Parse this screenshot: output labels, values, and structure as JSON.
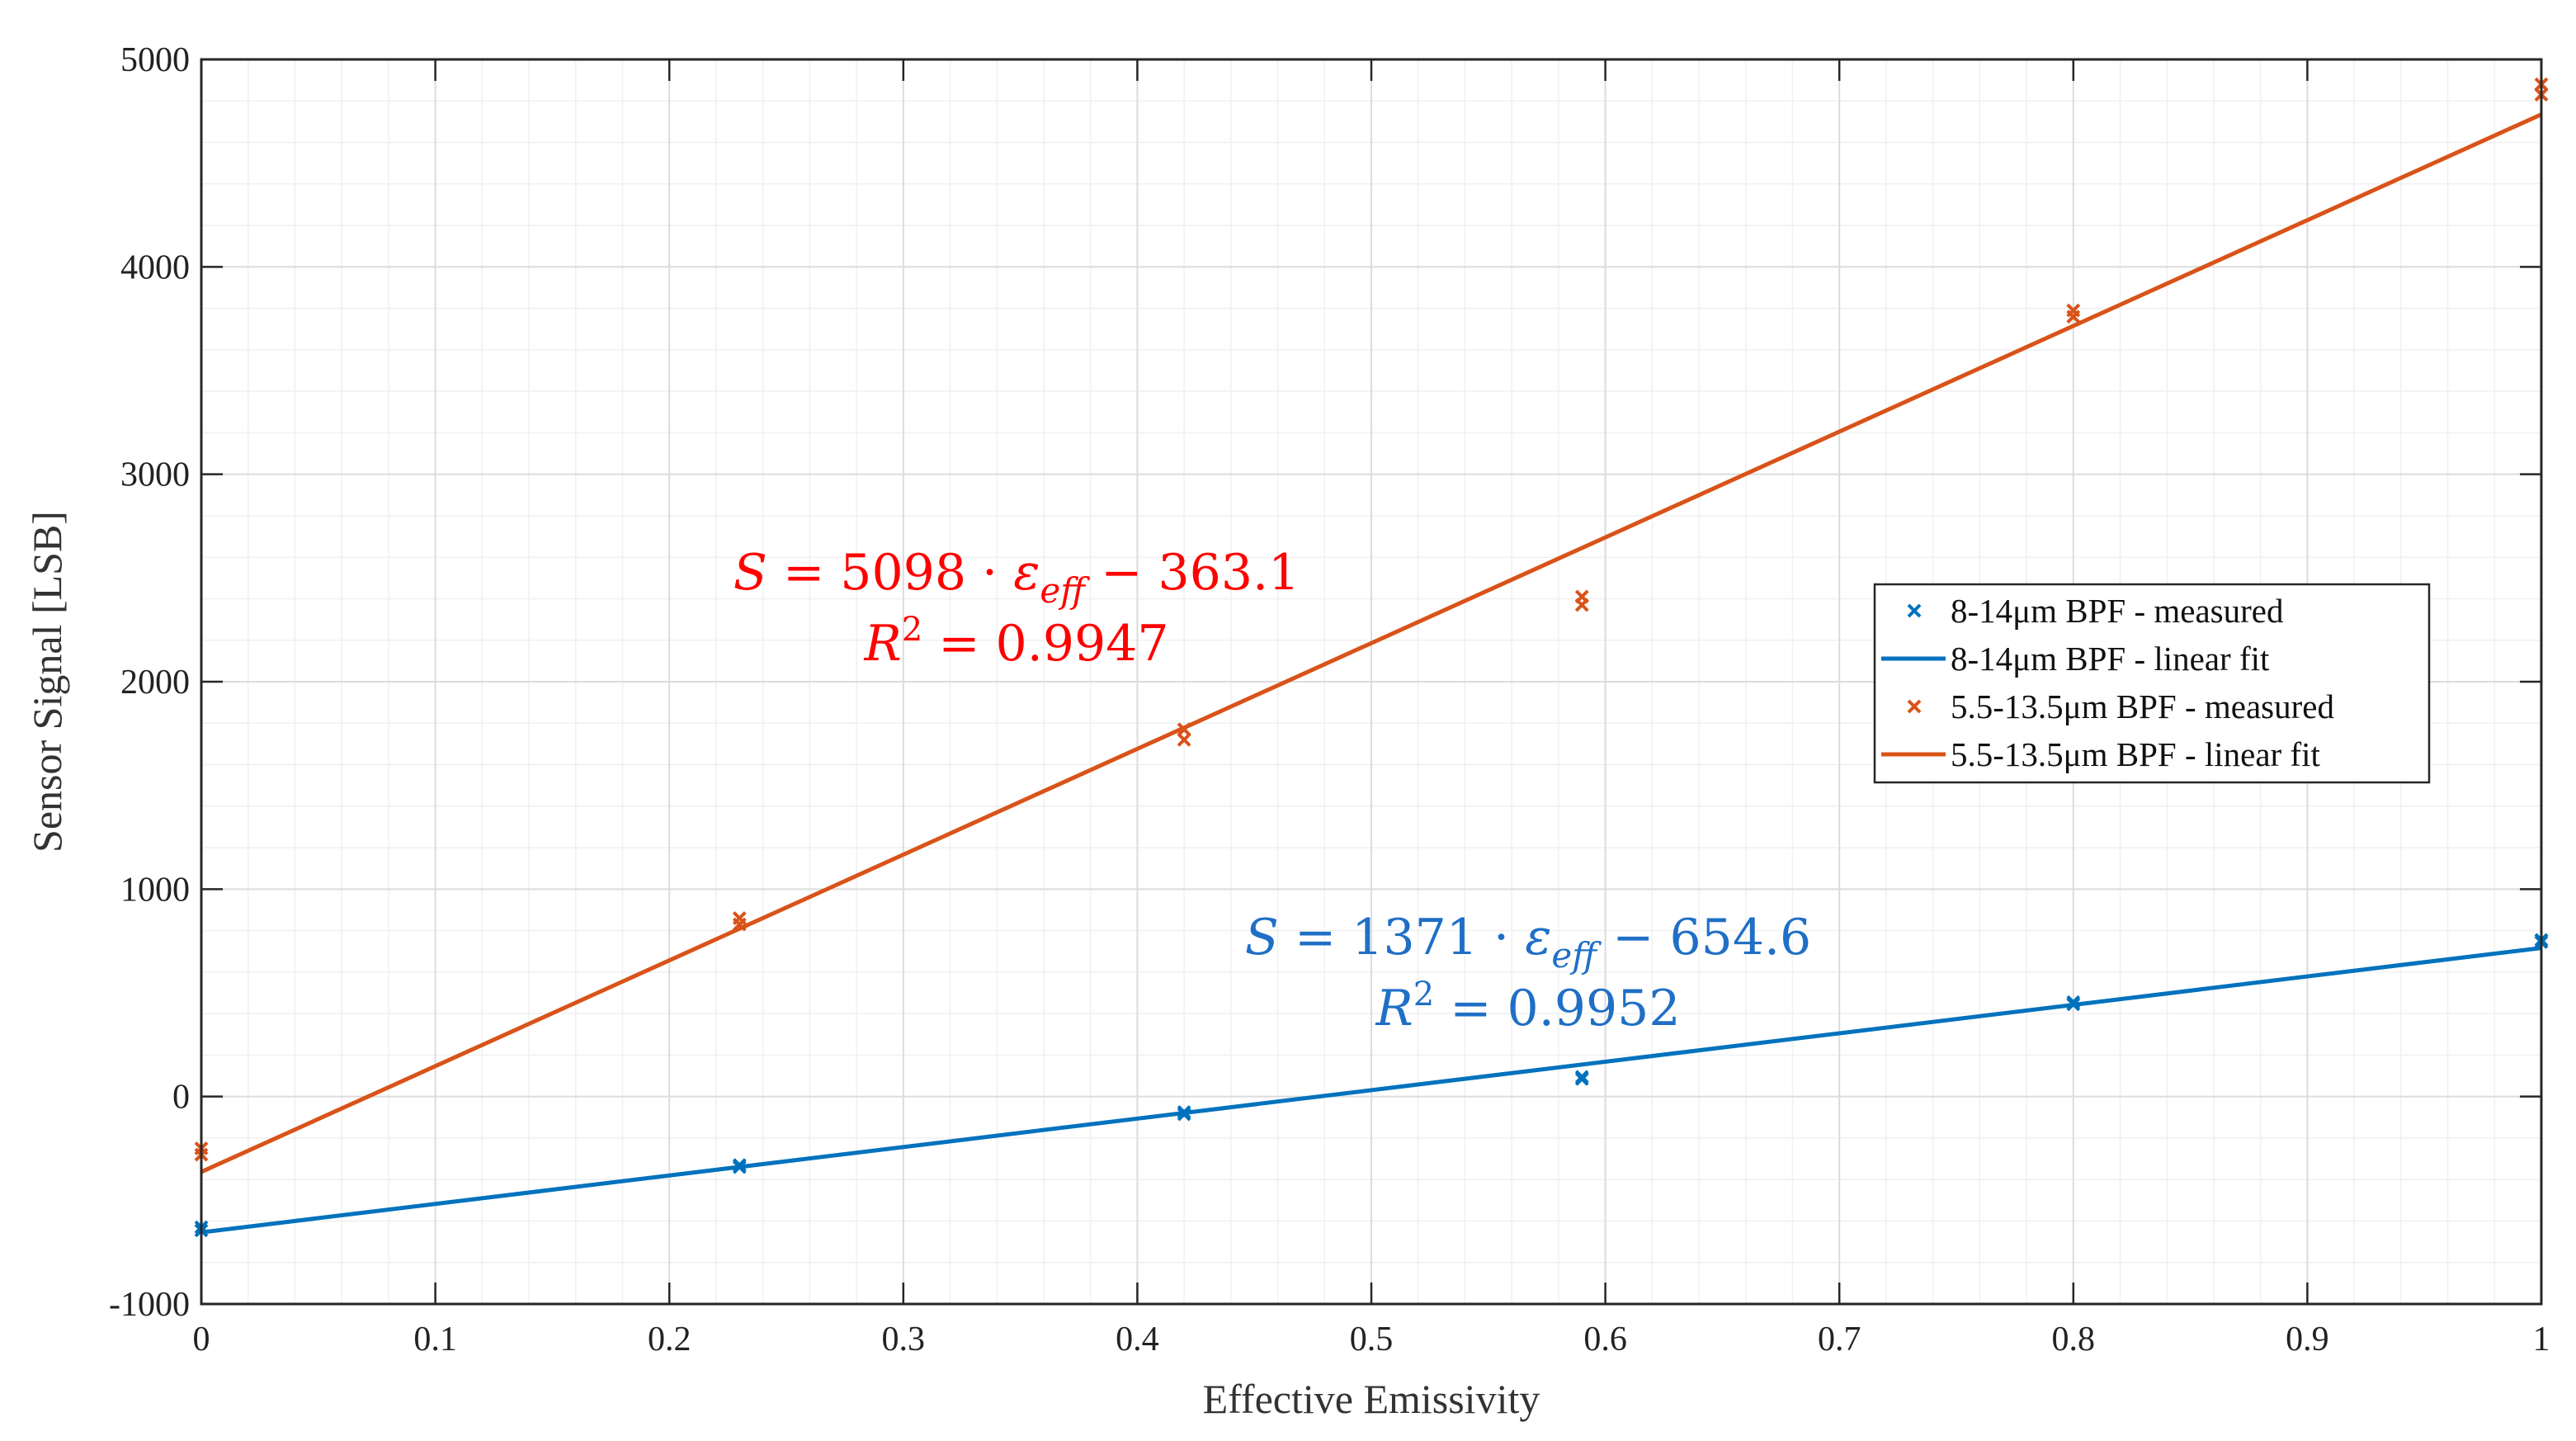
{
  "chart_data": {
    "type": "scatter",
    "title": "",
    "xlabel": "Effective Emissivity",
    "ylabel": "Sensor Signal [LSB]",
    "xlim": [
      0,
      1
    ],
    "ylim": [
      -1000,
      5000
    ],
    "xticks": [
      0,
      0.1,
      0.2,
      0.3,
      0.4,
      0.5,
      0.6,
      0.7,
      0.8,
      0.9,
      1
    ],
    "xtick_labels": [
      "0",
      "0.1",
      "0.2",
      "0.3",
      "0.4",
      "0.5",
      "0.6",
      "0.7",
      "0.8",
      "0.9",
      "1"
    ],
    "yticks": [
      -1000,
      0,
      1000,
      2000,
      3000,
      4000,
      5000
    ],
    "ytick_labels": [
      "-1000",
      "0",
      "1000",
      "2000",
      "3000",
      "4000",
      "5000"
    ],
    "grid": true,
    "minor_grid": true,
    "legend_position": "center-right",
    "series": [
      {
        "name": "8-14μm BPF - measured",
        "kind": "scatter",
        "color": "#0072BD",
        "points": [
          {
            "x": 0,
            "y": -630
          },
          {
            "x": 0,
            "y": -645
          },
          {
            "x": 0.23,
            "y": -330
          },
          {
            "x": 0.23,
            "y": -340
          },
          {
            "x": 0.42,
            "y": -75
          },
          {
            "x": 0.42,
            "y": -85
          },
          {
            "x": 0.59,
            "y": 85
          },
          {
            "x": 0.59,
            "y": 95
          },
          {
            "x": 0.8,
            "y": 445
          },
          {
            "x": 0.8,
            "y": 455
          },
          {
            "x": 1,
            "y": 745
          },
          {
            "x": 1,
            "y": 755
          }
        ]
      },
      {
        "name": "8-14μm BPF - linear fit",
        "kind": "line",
        "color": "#0072BD",
        "slope": 1371,
        "intercept": -654.6,
        "x_range": [
          0,
          1
        ]
      },
      {
        "name": "5.5-13.5μm BPF - measured",
        "kind": "scatter",
        "color": "#D95319",
        "points": [
          {
            "x": 0,
            "y": -250
          },
          {
            "x": 0,
            "y": -280
          },
          {
            "x": 0.23,
            "y": 830
          },
          {
            "x": 0.23,
            "y": 860
          },
          {
            "x": 0.42,
            "y": 1720
          },
          {
            "x": 0.42,
            "y": 1770
          },
          {
            "x": 0.59,
            "y": 2370
          },
          {
            "x": 0.59,
            "y": 2410
          },
          {
            "x": 0.8,
            "y": 3760
          },
          {
            "x": 0.8,
            "y": 3790
          },
          {
            "x": 1,
            "y": 4830
          },
          {
            "x": 1,
            "y": 4880
          }
        ]
      },
      {
        "name": "5.5-13.5μm BPF - linear fit",
        "kind": "line",
        "color": "#D95319",
        "slope": 5098,
        "intercept": -363.1,
        "x_range": [
          0,
          1
        ]
      }
    ],
    "annotations": [
      {
        "id": "orange-fit",
        "color": "#FF0000",
        "equation": {
          "lhs": "S",
          "eq": " = 5098 · ",
          "eps": "ε",
          "sub": "eff",
          "rest": " − 363.1"
        },
        "r2": {
          "lhs": "R",
          "sup": "2",
          "rest": " = 0.9947"
        }
      },
      {
        "id": "blue-fit",
        "color": "#1F6FC6",
        "equation": {
          "lhs": "S",
          "eq": " = 1371 · ",
          "eps": "ε",
          "sub": "eff",
          "rest": "  −  654.6"
        },
        "r2": {
          "lhs": "R",
          "sup": "2",
          "rest": " = 0.9952"
        }
      }
    ]
  }
}
